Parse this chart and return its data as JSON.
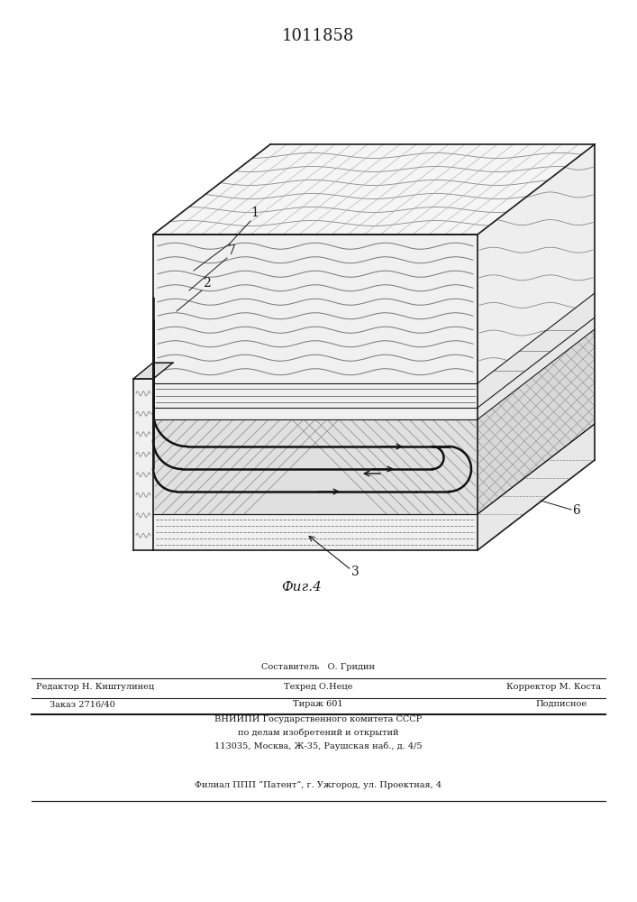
{
  "title": "1011858",
  "fig_label": "Фиг.4",
  "bg_color": "#ffffff",
  "dc": "#1a1a1a",
  "footer": {
    "line0": "Составитель   О. Гридин",
    "editor": "Редактор Н. Киштулинец",
    "techred": "Техред О.Неце",
    "corrector": "Корректор М. Коста",
    "order": "Заказ 2716/40",
    "tirazh": "Тираж 601",
    "podp": "Подписное",
    "vniip1": "ВНИИПИ Государственного комитета СССР",
    "vniip2": "по делам изобретений и открытий",
    "addr": "113035, Москва, Ж-35, Раушская наб., д. 4/5",
    "filial": "Филиал ППП “Патент”, г. Ужгород, ул. Проектная, 4"
  }
}
